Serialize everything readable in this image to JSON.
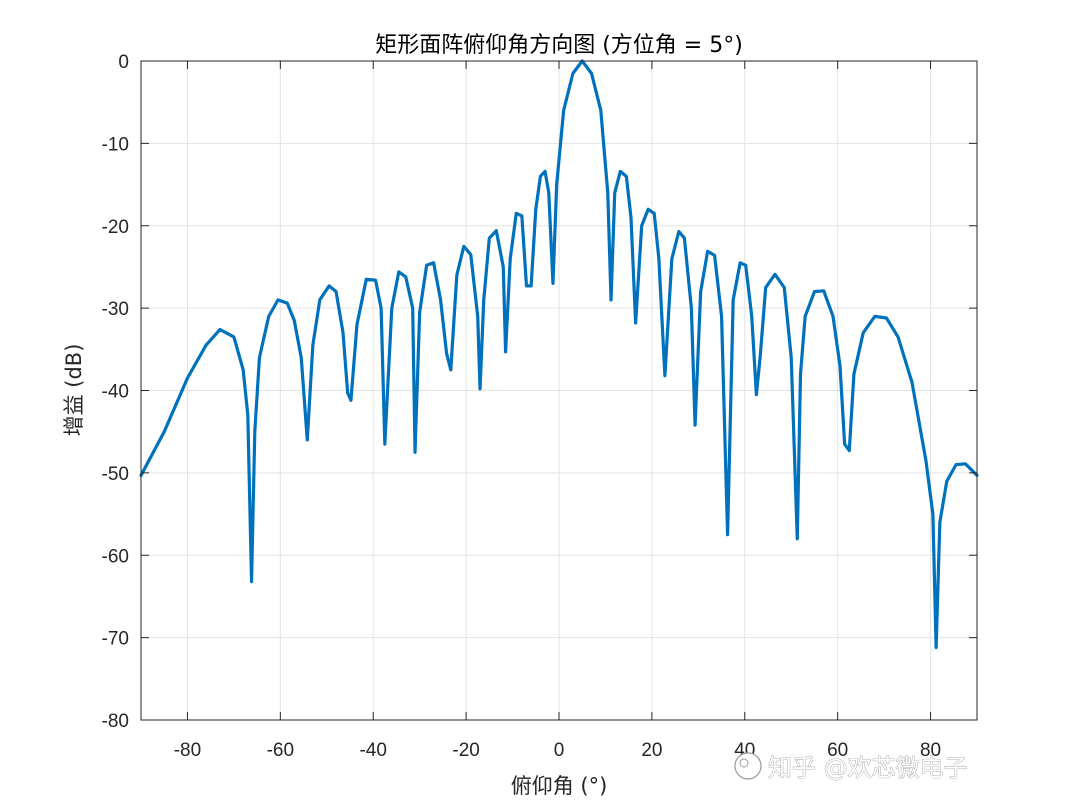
{
  "chart_data": {
    "type": "line",
    "title": "矩形面阵俯仰角方向图 (方位角 = 5°)",
    "xlabel": "俯仰角 (°)",
    "ylabel": "增益 (dB)",
    "xlim": [
      -90,
      90
    ],
    "ylim": [
      -80,
      0
    ],
    "xticks": [
      -80,
      -60,
      -40,
      -20,
      0,
      20,
      40,
      60,
      80
    ],
    "yticks": [
      0,
      -10,
      -20,
      -30,
      -40,
      -50,
      -60,
      -70,
      -80
    ],
    "xtick_labels": [
      "-80",
      "-60",
      "-40",
      "-20",
      "0",
      "20",
      "40",
      "60",
      "80"
    ],
    "ytick_labels": [
      "0",
      "-10",
      "-20",
      "-30",
      "-40",
      "-50",
      "-60",
      "-70",
      "-80"
    ],
    "grid": true,
    "series": [
      {
        "color": "#0072BD",
        "x": [
          -90,
          -85,
          -80,
          -76,
          -73,
          -70,
          -68,
          -67,
          -66.2,
          -65.5,
          -64.5,
          -62.5,
          -60.5,
          -58.5,
          -57,
          -55.5,
          -54.2,
          -53,
          -51.5,
          -49.5,
          -48,
          -46.5,
          -45.5,
          -44.8,
          -43.5,
          -41.5,
          -39.5,
          -38.3,
          -37.5,
          -36,
          -34.5,
          -33,
          -31.5,
          -31,
          -30,
          -28.5,
          -27,
          -25.5,
          -24.2,
          -23.3,
          -22,
          -20.5,
          -19,
          -17.5,
          -17,
          -16.2,
          -15,
          -13.5,
          -12,
          -11.5,
          -10.5,
          -9.2,
          -8,
          -7,
          -6,
          -5,
          -4,
          -3,
          -2.2,
          -1.3,
          -0.5,
          1,
          3,
          5,
          7,
          9,
          10.5,
          11.2,
          12,
          13.2,
          14.5,
          15.5,
          16.5,
          17.8,
          19.2,
          20.5,
          21.5,
          22.8,
          24.3,
          25.8,
          27,
          28.5,
          29.3,
          30.5,
          32,
          33.5,
          35,
          36.3,
          37.5,
          39,
          40.2,
          41.5,
          42.5,
          43.3,
          44.5,
          46.5,
          48.5,
          50,
          51.3,
          52,
          53,
          55,
          57,
          59,
          60.5,
          61.5,
          62.5,
          63.5,
          65.5,
          68,
          70.5,
          73,
          76,
          79,
          80.5,
          81.2,
          82,
          83.5,
          85.5,
          87.5,
          90
        ],
        "y": [
          -50.3,
          -45,
          -38.5,
          -34.5,
          -32.6,
          -33.5,
          -37.5,
          -43,
          -63.2,
          -45,
          -36,
          -31,
          -29,
          -29.4,
          -31.5,
          -36,
          -46,
          -34.5,
          -29,
          -27.3,
          -28,
          -33,
          -40.3,
          -41.2,
          -32,
          -26.5,
          -26.6,
          -30,
          -46.5,
          -30,
          -25.6,
          -26.2,
          -30,
          -47.5,
          -30.5,
          -24.8,
          -24.5,
          -29,
          -35.5,
          -37.5,
          -26,
          -22.5,
          -23.5,
          -31,
          -39.8,
          -29,
          -21.5,
          -20.6,
          -25,
          -35.3,
          -24,
          -18.5,
          -18.8,
          -27.3,
          -27.3,
          -18,
          -14,
          -13.4,
          -16,
          -27,
          -15,
          -6,
          -1.5,
          0,
          -1.5,
          -6,
          -16,
          -29,
          -16,
          -13.4,
          -14,
          -19,
          -31.8,
          -20,
          -18,
          -18.5,
          -24,
          -38.2,
          -24,
          -20.7,
          -21.5,
          -30,
          -44.2,
          -28,
          -23.1,
          -23.6,
          -31,
          -57.5,
          -29,
          -24.5,
          -24.8,
          -31,
          -40.5,
          -36,
          -27.5,
          -25.9,
          -27.5,
          -36,
          -58,
          -38,
          -31,
          -28,
          -27.9,
          -31,
          -37,
          -46.5,
          -47.3,
          -38,
          -33,
          -31,
          -31.2,
          -33.5,
          -39,
          -48.5,
          -55,
          -71.2,
          -56,
          -51,
          -49,
          -48.9,
          -50.3
        ]
      }
    ]
  },
  "watermark": {
    "text": "知乎 @欢芯微电子"
  }
}
